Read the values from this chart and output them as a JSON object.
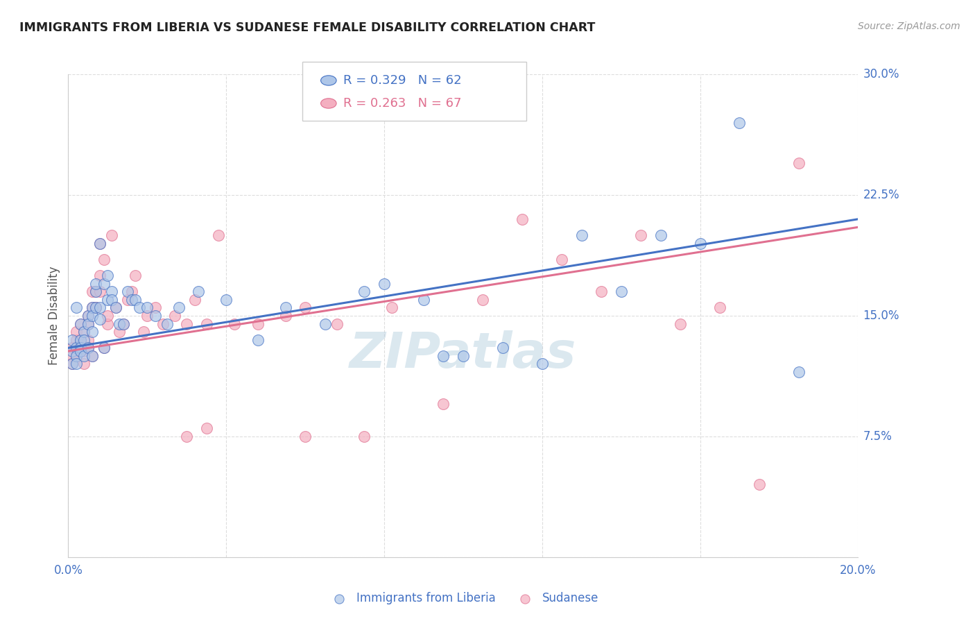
{
  "title": "IMMIGRANTS FROM LIBERIA VS SUDANESE FEMALE DISABILITY CORRELATION CHART",
  "source": "Source: ZipAtlas.com",
  "ylabel": "Female Disability",
  "xlim": [
    0.0,
    0.2
  ],
  "ylim": [
    0.0,
    0.3
  ],
  "xticks": [
    0.0,
    0.04,
    0.08,
    0.12,
    0.16,
    0.2
  ],
  "xticklabels": [
    "0.0%",
    "",
    "",
    "",
    "",
    "20.0%"
  ],
  "yticks": [
    0.0,
    0.075,
    0.15,
    0.225,
    0.3
  ],
  "yticklabels": [
    "",
    "7.5%",
    "15.0%",
    "22.5%",
    "30.0%"
  ],
  "grid_color": "#dddddd",
  "background_color": "#ffffff",
  "liberia_color": "#aec6e8",
  "sudanese_color": "#f4afc0",
  "liberia_line_color": "#4472c4",
  "sudanese_line_color": "#e07090",
  "legend_r_liberia": "R = 0.329",
  "legend_n_liberia": "N = 62",
  "legend_r_sudanese": "R = 0.263",
  "legend_n_sudanese": "N = 67",
  "watermark": "ZIPatlas",
  "liberia_x": [
    0.001,
    0.001,
    0.001,
    0.002,
    0.002,
    0.002,
    0.002,
    0.003,
    0.003,
    0.003,
    0.003,
    0.004,
    0.004,
    0.004,
    0.005,
    0.005,
    0.005,
    0.006,
    0.006,
    0.006,
    0.006,
    0.007,
    0.007,
    0.007,
    0.008,
    0.008,
    0.008,
    0.009,
    0.009,
    0.01,
    0.01,
    0.011,
    0.011,
    0.012,
    0.013,
    0.014,
    0.015,
    0.016,
    0.017,
    0.018,
    0.02,
    0.022,
    0.025,
    0.028,
    0.033,
    0.04,
    0.048,
    0.055,
    0.065,
    0.075,
    0.08,
    0.09,
    0.095,
    0.1,
    0.11,
    0.12,
    0.13,
    0.14,
    0.15,
    0.16,
    0.17,
    0.185
  ],
  "liberia_y": [
    0.135,
    0.128,
    0.12,
    0.13,
    0.125,
    0.155,
    0.12,
    0.135,
    0.145,
    0.13,
    0.128,
    0.14,
    0.135,
    0.125,
    0.15,
    0.13,
    0.145,
    0.155,
    0.125,
    0.15,
    0.14,
    0.155,
    0.165,
    0.17,
    0.148,
    0.195,
    0.155,
    0.17,
    0.13,
    0.175,
    0.16,
    0.165,
    0.16,
    0.155,
    0.145,
    0.145,
    0.165,
    0.16,
    0.16,
    0.155,
    0.155,
    0.15,
    0.145,
    0.155,
    0.165,
    0.16,
    0.135,
    0.155,
    0.145,
    0.165,
    0.17,
    0.16,
    0.125,
    0.125,
    0.13,
    0.12,
    0.2,
    0.165,
    0.2,
    0.195,
    0.27,
    0.115
  ],
  "sudanese_x": [
    0.001,
    0.001,
    0.001,
    0.002,
    0.002,
    0.002,
    0.002,
    0.003,
    0.003,
    0.003,
    0.003,
    0.004,
    0.004,
    0.004,
    0.005,
    0.005,
    0.005,
    0.005,
    0.006,
    0.006,
    0.006,
    0.007,
    0.007,
    0.007,
    0.008,
    0.008,
    0.008,
    0.009,
    0.009,
    0.01,
    0.01,
    0.011,
    0.012,
    0.013,
    0.014,
    0.015,
    0.016,
    0.017,
    0.019,
    0.02,
    0.022,
    0.024,
    0.027,
    0.03,
    0.032,
    0.035,
    0.038,
    0.042,
    0.048,
    0.055,
    0.06,
    0.068,
    0.075,
    0.082,
    0.095,
    0.105,
    0.115,
    0.125,
    0.135,
    0.145,
    0.155,
    0.165,
    0.175,
    0.185,
    0.03,
    0.035,
    0.06
  ],
  "sudanese_y": [
    0.13,
    0.125,
    0.12,
    0.135,
    0.128,
    0.14,
    0.125,
    0.135,
    0.145,
    0.13,
    0.128,
    0.14,
    0.128,
    0.12,
    0.15,
    0.135,
    0.145,
    0.13,
    0.155,
    0.125,
    0.165,
    0.155,
    0.155,
    0.165,
    0.175,
    0.195,
    0.165,
    0.185,
    0.13,
    0.145,
    0.15,
    0.2,
    0.155,
    0.14,
    0.145,
    0.16,
    0.165,
    0.175,
    0.14,
    0.15,
    0.155,
    0.145,
    0.15,
    0.145,
    0.16,
    0.145,
    0.2,
    0.145,
    0.145,
    0.15,
    0.155,
    0.145,
    0.075,
    0.155,
    0.095,
    0.16,
    0.21,
    0.185,
    0.165,
    0.2,
    0.145,
    0.155,
    0.045,
    0.245,
    0.075,
    0.08,
    0.075
  ]
}
